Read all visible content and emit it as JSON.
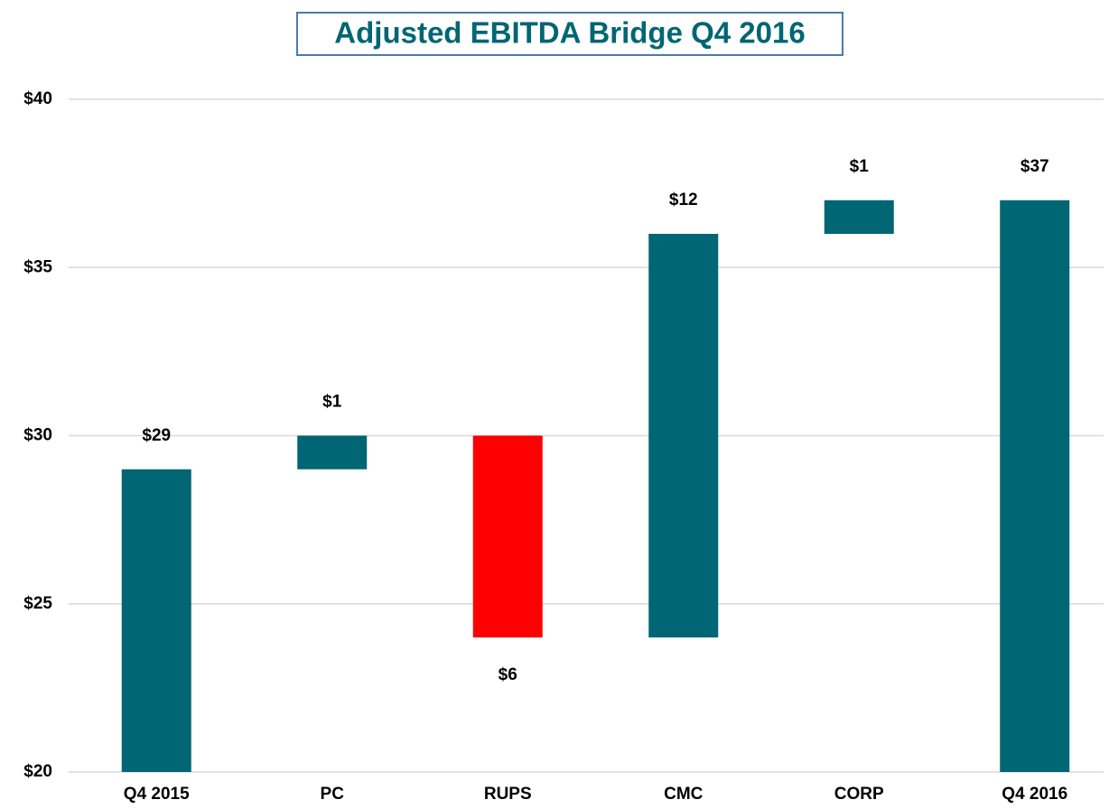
{
  "chart_data": {
    "type": "waterfall",
    "title": "Adjusted EBITDA Bridge Q4 2016",
    "categories": [
      "Q4 2015",
      "PC",
      "RUPS",
      "CMC",
      "CORP",
      "Q4 2016"
    ],
    "values": [
      29,
      1,
      -6,
      12,
      1,
      37
    ],
    "value_labels": [
      "$29",
      "$1",
      "$6",
      "$12",
      "$1",
      "$37"
    ],
    "color": "#006673",
    "negative_color": "#ff0000",
    "ylim": [
      20,
      40
    ],
    "yticks": [
      {
        "value": 20,
        "label": "$20"
      },
      {
        "value": 25,
        "label": "$25"
      },
      {
        "value": 30,
        "label": "$30"
      },
      {
        "value": 35,
        "label": "$35"
      },
      {
        "value": 40,
        "label": "$40"
      }
    ],
    "grid": true
  }
}
